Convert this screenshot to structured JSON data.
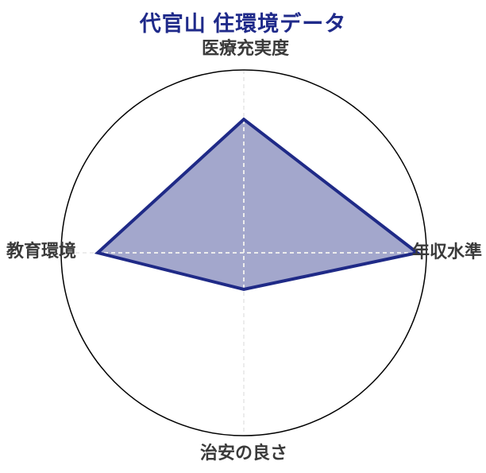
{
  "chart_data": {
    "type": "radar",
    "title": "代官山 住環境データ",
    "categories": [
      "医療充実度",
      "年収水準",
      "治安の良さ",
      "教育環境"
    ],
    "values": [
      0.73,
      0.95,
      0.2,
      0.8
    ],
    "rmax": 1.0,
    "legend": "none",
    "grid": "outer-circle-with-dashed-cross-axes",
    "colors": {
      "title": "#1f2a8a",
      "axis_label": "#3a3a3a",
      "polygon_stroke": "#1f2a87",
      "polygon_fill": "#a3a7cc",
      "outer_circle": "#000000",
      "axis_dash": "#ececec",
      "background": "#ffffff"
    }
  }
}
